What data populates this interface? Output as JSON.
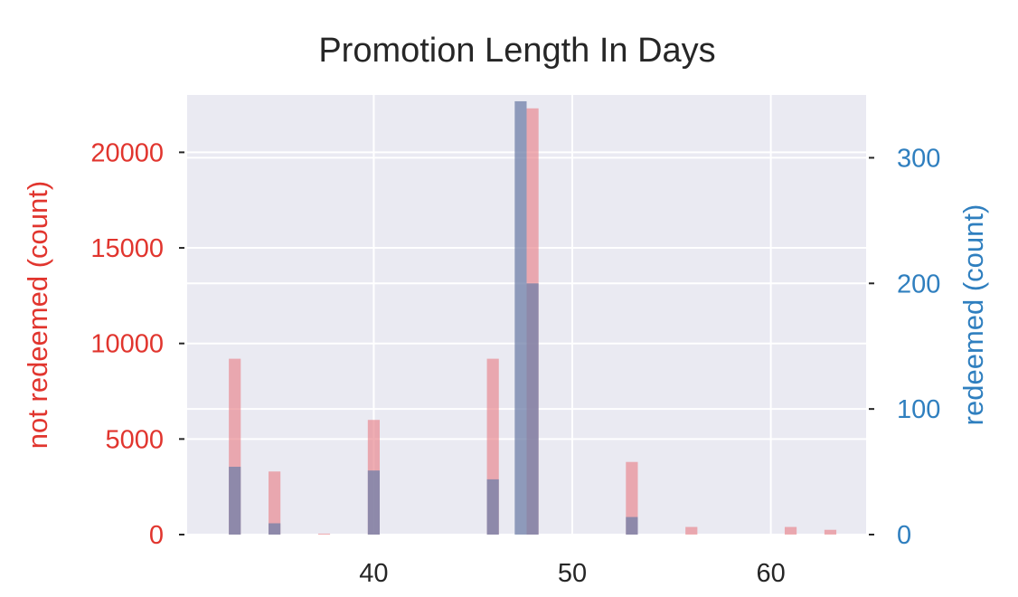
{
  "chart_data": {
    "type": "bar",
    "title": "Promotion Length In Days",
    "xlabel": "",
    "x_ticks": [
      40,
      50,
      60
    ],
    "xlim": [
      30.6,
      64.8
    ],
    "bin_width": 0.6,
    "colors": {
      "not_redeemed": "#e8828a",
      "redeemed": "#6f7fa8",
      "left_axis": "#e1352e",
      "right_axis": "#2f7fbf",
      "plot_bg": "#eaeaf2",
      "grid": "#ffffff"
    },
    "left_axis": {
      "label": "not redeemed (count)",
      "ylim": [
        0,
        23000
      ],
      "ticks": [
        0,
        5000,
        10000,
        15000,
        20000
      ],
      "tick_labels": [
        "0",
        "5000",
        "10000",
        "15000",
        "20000"
      ]
    },
    "right_axis": {
      "label": "redeemed (count)",
      "ylim": [
        0,
        350
      ],
      "ticks": [
        0,
        100,
        200,
        300
      ],
      "tick_labels": [
        "0",
        "100",
        "200",
        "300"
      ]
    },
    "series": [
      {
        "name": "not redeemed",
        "axis": "left",
        "x": [
          33,
          35,
          37.5,
          40,
          46,
          48,
          53,
          56,
          61,
          63
        ],
        "values": [
          9200,
          3300,
          50,
          6000,
          9200,
          22300,
          3800,
          400,
          400,
          250
        ]
      },
      {
        "name": "redeemed",
        "axis": "right",
        "x": [
          33,
          35,
          40,
          46,
          47.4,
          48,
          53
        ],
        "values": [
          54,
          9,
          51,
          44,
          345,
          200,
          14
        ]
      }
    ]
  }
}
